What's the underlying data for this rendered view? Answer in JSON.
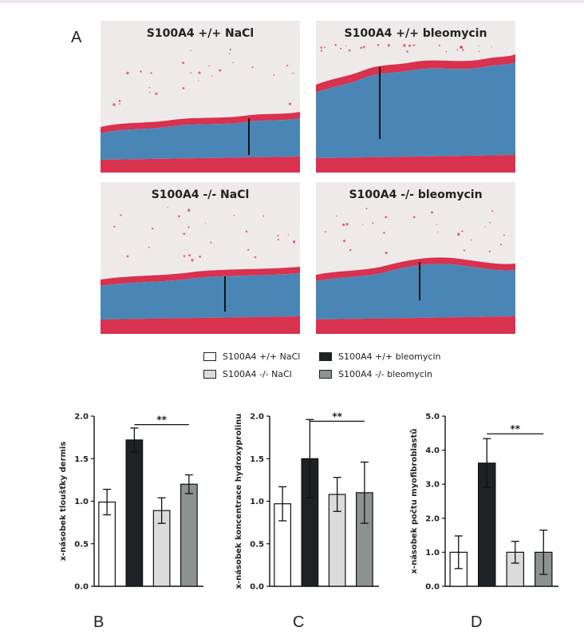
{
  "panel_letters": {
    "a": "A",
    "b": "B",
    "c": "C",
    "d": "D"
  },
  "micrographs": [
    {
      "title": "S100A4 +/+  NaCl"
    },
    {
      "title": "S100A4 +/+  bleomycin"
    },
    {
      "title": "S100A4 -/-  NaCl"
    },
    {
      "title": "S100A4 -/-  bleomycin"
    }
  ],
  "legend": [
    {
      "label": "S100A4 +/+  NaCl",
      "color": "#ffffff"
    },
    {
      "label": "S100A4 +/+  bleomycin",
      "color": "#1e2224"
    },
    {
      "label": "S100A4 -/-  NaCl",
      "color": "#dadcdc"
    },
    {
      "label": "S100A4 -/-  bleomycin",
      "color": "#8c9191"
    }
  ],
  "colors": {
    "tissue_red": "#d8324e",
    "tissue_blue": "#4a86b5",
    "background": "#efeaea"
  },
  "chart_data": [
    {
      "type": "bar",
      "panel": "B",
      "ylabel": "x-násobek tloušťky dermis",
      "ylim": [
        0,
        2.0
      ],
      "yticks": [
        "0.0",
        "0.5",
        "1.0",
        "1.5",
        "2.0"
      ],
      "categories": [
        "S100A4 +/+  NaCl",
        "S100A4 +/+  bleomycin",
        "S100A4 -/-  NaCl",
        "S100A4 -/-  bleomycin"
      ],
      "values": [
        0.99,
        1.72,
        0.89,
        1.2
      ],
      "errors": [
        0.15,
        0.14,
        0.15,
        0.11
      ],
      "significance": "**"
    },
    {
      "type": "bar",
      "panel": "C",
      "ylabel": "x-násobek koncentrace hydroxyprolinu",
      "ylim": [
        0,
        2.0
      ],
      "yticks": [
        "0.0",
        "0.5",
        "1.0",
        "1.5",
        "2.0"
      ],
      "categories": [
        "S100A4 +/+  NaCl",
        "S100A4 +/+  bleomycin",
        "S100A4 -/-  NaCl",
        "S100A4 -/-  bleomycin"
      ],
      "values": [
        0.97,
        1.5,
        1.08,
        1.1
      ],
      "errors": [
        0.2,
        0.46,
        0.2,
        0.36
      ],
      "significance": "**"
    },
    {
      "type": "bar",
      "panel": "D",
      "ylabel": "x-násobek počtu myofibroblastů",
      "ylim": [
        0,
        5.0
      ],
      "yticks": [
        "0.0",
        "1.0",
        "2.0",
        "3.0",
        "4.0",
        "5.0"
      ],
      "categories": [
        "S100A4 +/+  NaCl",
        "S100A4 +/+  bleomycin",
        "S100A4 -/-  NaCl",
        "S100A4 -/-  bleomycin"
      ],
      "values": [
        1.0,
        3.62,
        1.0,
        1.0
      ],
      "errors": [
        0.48,
        0.72,
        0.32,
        0.65
      ],
      "significance": "**"
    }
  ]
}
